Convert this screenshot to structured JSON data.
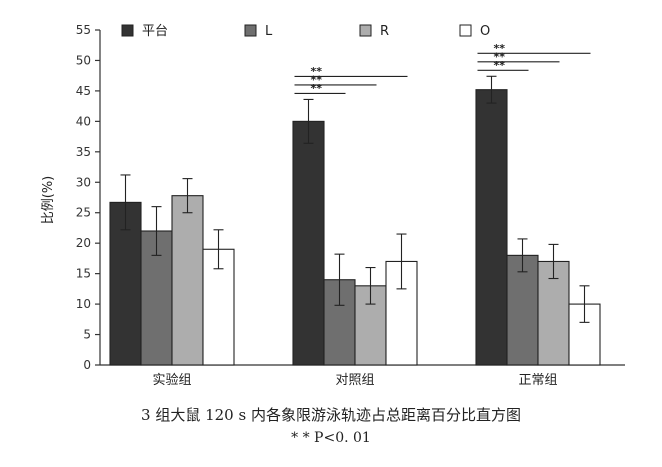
{
  "chart_data": {
    "type": "bar",
    "title": "",
    "xlabel": "",
    "ylabel": "比例(%)",
    "ylim": [
      0,
      55
    ],
    "yticks": [
      0,
      5,
      10,
      15,
      20,
      25,
      30,
      35,
      40,
      45,
      50,
      55
    ],
    "categories": [
      "实验组",
      "对照组",
      "正常组"
    ],
    "legend_position": "top",
    "series": [
      {
        "name": "平台",
        "color": "#333333",
        "values": [
          26.7,
          40.0,
          45.2
        ],
        "errors": [
          4.5,
          3.6,
          2.2
        ]
      },
      {
        "name": "L",
        "color": "#6f6f6f",
        "values": [
          22.0,
          14.0,
          18.0
        ],
        "errors": [
          4.0,
          4.2,
          2.7
        ]
      },
      {
        "name": "R",
        "color": "#adadad",
        "values": [
          27.8,
          13.0,
          17.0
        ],
        "errors": [
          2.8,
          3.0,
          2.8
        ]
      },
      {
        "name": "O",
        "color": "#ffffff",
        "values": [
          19.0,
          17.0,
          10.0
        ],
        "errors": [
          3.2,
          4.5,
          3.0
        ]
      }
    ],
    "significance": [
      {
        "category": "对照组",
        "from_series": 0,
        "to_series": 1,
        "label": "**"
      },
      {
        "category": "对照组",
        "from_series": 0,
        "to_series": 2,
        "label": "**"
      },
      {
        "category": "对照组",
        "from_series": 0,
        "to_series": 3,
        "label": "**"
      },
      {
        "category": "正常组",
        "from_series": 0,
        "to_series": 1,
        "label": "**"
      },
      {
        "category": "正常组",
        "from_series": 0,
        "to_series": 2,
        "label": "**"
      },
      {
        "category": "正常组",
        "from_series": 0,
        "to_series": 3,
        "label": "**"
      }
    ]
  },
  "caption": {
    "title": "3 组大鼠 120 s 内各象限游泳轨迹占总距离百分比直方图",
    "note": "* * P<0. 01"
  }
}
